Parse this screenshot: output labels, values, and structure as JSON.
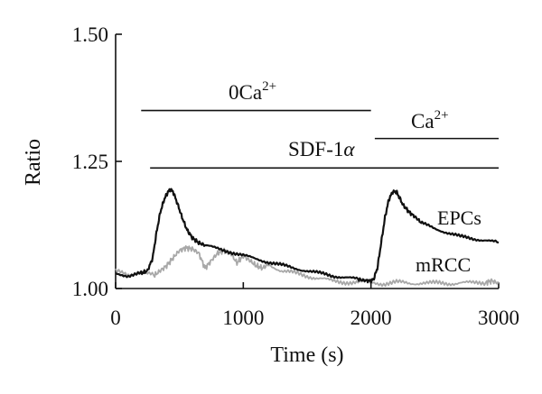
{
  "chart_data": {
    "type": "line",
    "xlabel": "Time (s)",
    "ylabel": "Ratio",
    "xlim": [
      0,
      3000
    ],
    "ylim": [
      1.0,
      1.5
    ],
    "x_ticks": [
      0,
      1000,
      2000,
      3000
    ],
    "y_ticks": [
      1.0,
      1.25,
      1.5
    ],
    "x_tick_labels": [
      "0",
      "1000",
      "2000",
      "3000"
    ],
    "y_tick_labels": [
      "1.00",
      "1.25",
      "1.50"
    ],
    "grid": false,
    "annotations": {
      "zero_ca": {
        "base": "0Ca",
        "sup": "2+",
        "x_start": 200,
        "x_end": 2000,
        "y": 1.35
      },
      "ca": {
        "base": "Ca",
        "sup": "2+",
        "x_start": 2030,
        "x_end": 3000,
        "y": 1.295
      },
      "sdf": {
        "text": "SDF-1",
        "greek": "α",
        "x_start": 270,
        "x_end": 3000,
        "y": 1.237
      }
    },
    "series": [
      {
        "name": "EPCs",
        "color": "#111111",
        "x": [
          0,
          100,
          200,
          250,
          290,
          320,
          350,
          380,
          410,
          430,
          450,
          480,
          520,
          560,
          600,
          650,
          700,
          800,
          900,
          1000,
          1100,
          1200,
          1300,
          1400,
          1500,
          1600,
          1700,
          1800,
          1900,
          1950,
          2000,
          2020,
          2050,
          2080,
          2110,
          2140,
          2170,
          2200,
          2220,
          2250,
          2300,
          2350,
          2400,
          2500,
          2600,
          2700,
          2800,
          2900,
          3000
        ],
        "y": [
          1.03,
          1.025,
          1.03,
          1.035,
          1.06,
          1.11,
          1.15,
          1.175,
          1.19,
          1.195,
          1.19,
          1.17,
          1.14,
          1.115,
          1.1,
          1.09,
          1.085,
          1.078,
          1.072,
          1.065,
          1.058,
          1.052,
          1.046,
          1.04,
          1.035,
          1.03,
          1.025,
          1.022,
          1.018,
          1.016,
          1.015,
          1.018,
          1.04,
          1.09,
          1.14,
          1.175,
          1.19,
          1.19,
          1.18,
          1.165,
          1.15,
          1.14,
          1.128,
          1.118,
          1.11,
          1.102,
          1.098,
          1.095,
          1.09
        ]
      },
      {
        "name": "mRCC",
        "color": "#a8a8a8",
        "x": [
          0,
          100,
          200,
          300,
          350,
          400,
          450,
          500,
          550,
          600,
          650,
          700,
          750,
          800,
          850,
          900,
          950,
          1000,
          1050,
          1100,
          1150,
          1200,
          1300,
          1400,
          1500,
          1600,
          1700,
          1800,
          1900,
          2000,
          2100,
          2200,
          2300,
          2400,
          2500,
          2600,
          2700,
          2800,
          2900,
          2950,
          3000
        ],
        "y": [
          1.033,
          1.028,
          1.032,
          1.025,
          1.035,
          1.045,
          1.06,
          1.075,
          1.08,
          1.078,
          1.07,
          1.04,
          1.055,
          1.07,
          1.075,
          1.07,
          1.05,
          1.065,
          1.055,
          1.045,
          1.04,
          1.048,
          1.035,
          1.03,
          1.025,
          1.02,
          1.014,
          1.013,
          1.012,
          1.012,
          1.01,
          1.012,
          1.01,
          1.012,
          1.01,
          1.01,
          1.012,
          1.01,
          1.012,
          1.015,
          1.01
        ]
      }
    ]
  }
}
